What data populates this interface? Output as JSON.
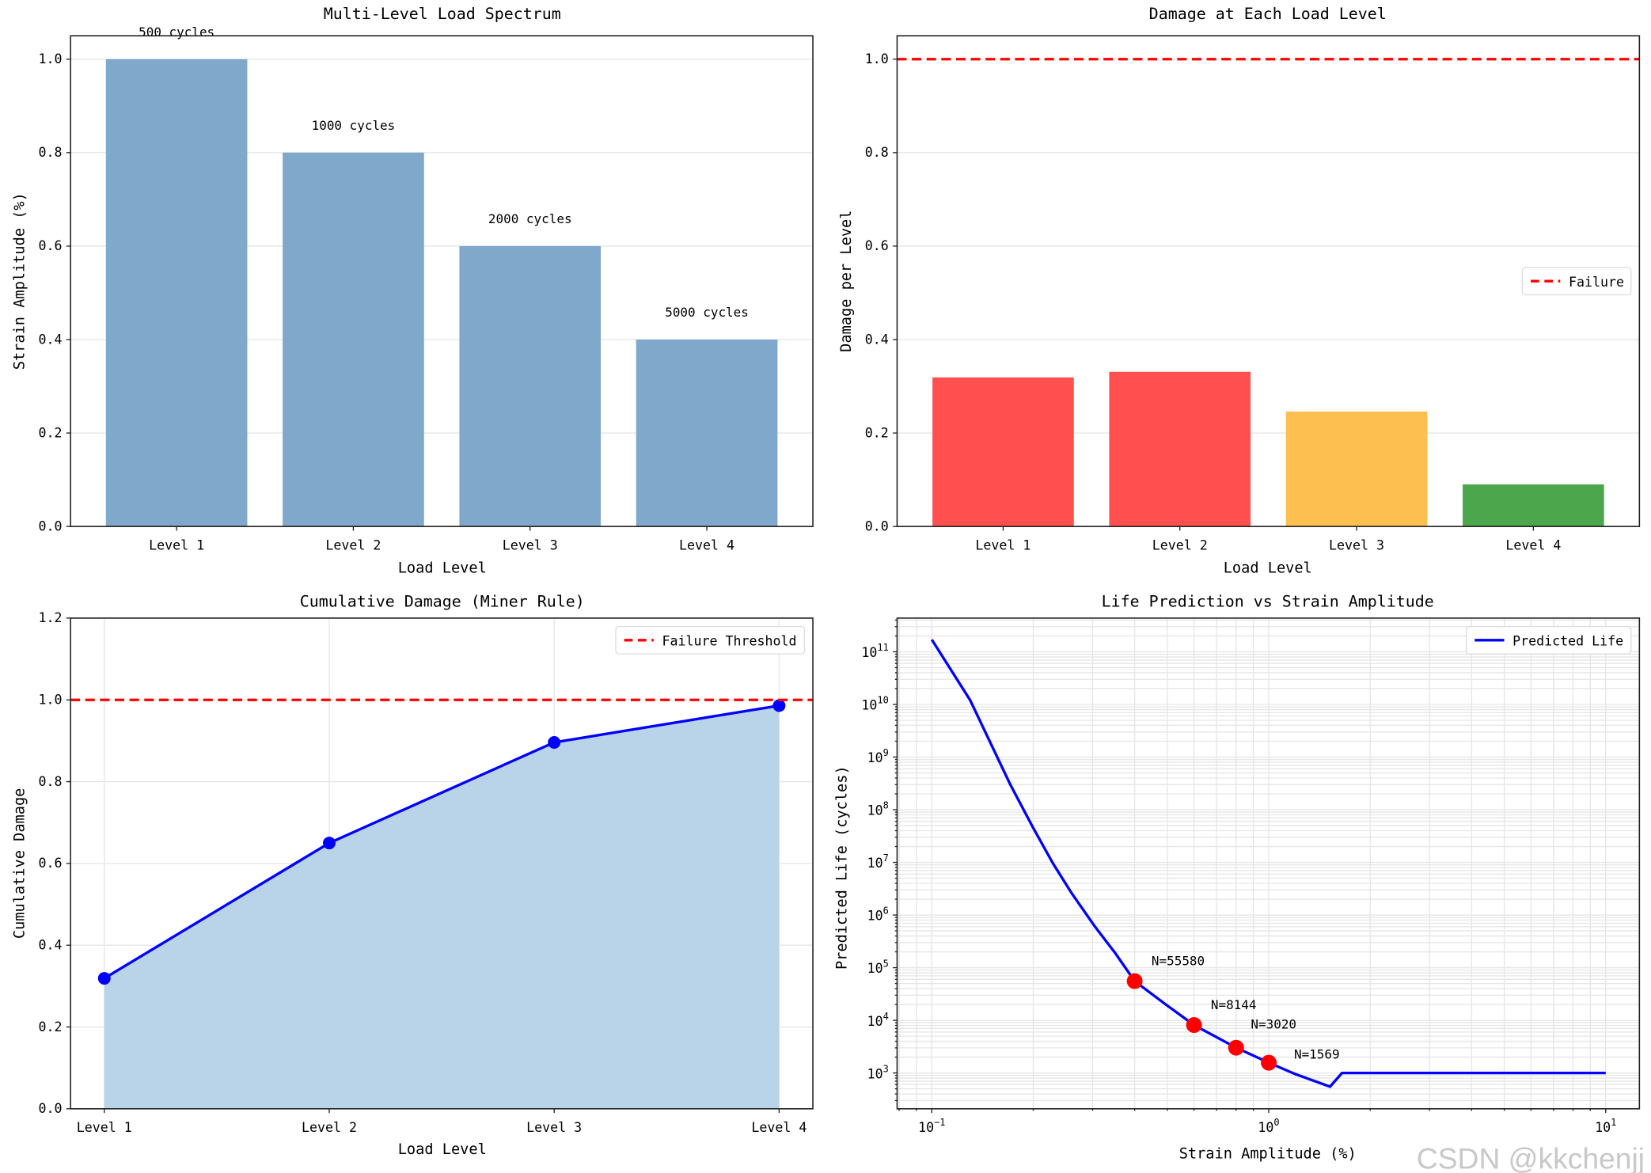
{
  "chart_data": [
    {
      "id": "spectrum",
      "type": "bar",
      "title": "Multi-Level Load Spectrum",
      "xlabel": "Load Level",
      "ylabel": "Strain Amplitude (%)",
      "categories": [
        "Level 1",
        "Level 2",
        "Level 3",
        "Level 4"
      ],
      "values": [
        1.0,
        0.8,
        0.6,
        0.4
      ],
      "bar_labels": [
        "500 cycles",
        "1000 cycles",
        "2000 cycles",
        "5000 cycles"
      ],
      "bar_color": "#7fa8cb",
      "ylim": [
        0,
        1.05
      ],
      "yticks": [
        0.0,
        0.2,
        0.4,
        0.6,
        0.8,
        1.0
      ],
      "grid": "y"
    },
    {
      "id": "damage",
      "type": "bar",
      "title": "Damage at Each Load Level",
      "xlabel": "Load Level",
      "ylabel": "Damage per Level",
      "categories": [
        "Level 1",
        "Level 2",
        "Level 3",
        "Level 4"
      ],
      "values": [
        0.319,
        0.331,
        0.246,
        0.09
      ],
      "bar_colors": [
        "#ff4f4f",
        "#ff4f4f",
        "#fdbf4f",
        "#4ca64c"
      ],
      "ylim": [
        0,
        1.05
      ],
      "yticks": [
        0.0,
        0.2,
        0.4,
        0.6,
        0.8,
        1.0
      ],
      "hline": {
        "y": 1.0,
        "color": "#ff0000",
        "label": "Failure"
      },
      "legend": "center right",
      "grid": "y"
    },
    {
      "id": "cumulative",
      "type": "line",
      "title": "Cumulative Damage (Miner Rule)",
      "xlabel": "Load Level",
      "ylabel": "Cumulative Damage",
      "categories": [
        "Level 1",
        "Level 2",
        "Level 3",
        "Level 4"
      ],
      "values": [
        0.319,
        0.65,
        0.896,
        0.986
      ],
      "line_color": "#0000ff",
      "fill_color": "#b9d4e8",
      "ylim": [
        0,
        1.2
      ],
      "yticks": [
        0.0,
        0.2,
        0.4,
        0.6,
        0.8,
        1.0,
        1.2
      ],
      "hline": {
        "y": 1.0,
        "color": "#ff0000",
        "label": "Failure Threshold"
      },
      "legend": "upper right",
      "grid": "both"
    },
    {
      "id": "life",
      "type": "line",
      "title": "Life Prediction vs Strain Amplitude",
      "xlabel": "Strain Amplitude (%)",
      "ylabel": "Predicted Life (cycles)",
      "xscale": "log",
      "yscale": "log",
      "series": [
        {
          "name": "Predicted Life",
          "color": "#0000ff",
          "x": [
            0.1,
            0.13,
            0.171,
            0.2,
            0.229,
            0.26,
            0.305,
            0.35,
            0.4,
            0.5,
            0.6,
            0.8,
            1.0,
            1.2,
            1.52,
            1.65,
            10
          ],
          "y": [
            170000000000.0,
            12000000000.0,
            300000000.0,
            45000000.0,
            9500000.0,
            2600000.0,
            600000.0,
            190000.0,
            55580,
            19000.0,
            8144,
            3020,
            1569,
            950,
            550,
            1000,
            1000
          ]
        }
      ],
      "points": {
        "color": "#ff0000",
        "x": [
          0.4,
          0.6,
          0.8,
          1.0
        ],
        "y": [
          55580,
          8144,
          3020,
          1569
        ],
        "labels": [
          "N=55580",
          "N=8144",
          "N=3020",
          "N=1569"
        ]
      },
      "xticks": [
        {
          "base": "10",
          "exp": "−1"
        },
        {
          "base": "10",
          "exp": "0"
        },
        {
          "base": "10",
          "exp": "1"
        }
      ],
      "yticks": [
        {
          "base": "10",
          "exp": "3"
        },
        {
          "base": "10",
          "exp": "4"
        },
        {
          "base": "10",
          "exp": "5"
        },
        {
          "base": "10",
          "exp": "6"
        },
        {
          "base": "10",
          "exp": "7"
        },
        {
          "base": "10",
          "exp": "8"
        },
        {
          "base": "10",
          "exp": "9"
        },
        {
          "base": "10",
          "exp": "10"
        },
        {
          "base": "10",
          "exp": "11"
        }
      ],
      "legend": "upper right",
      "grid": "both, major and minor"
    }
  ],
  "watermark": "CSDN @kkchenjj"
}
